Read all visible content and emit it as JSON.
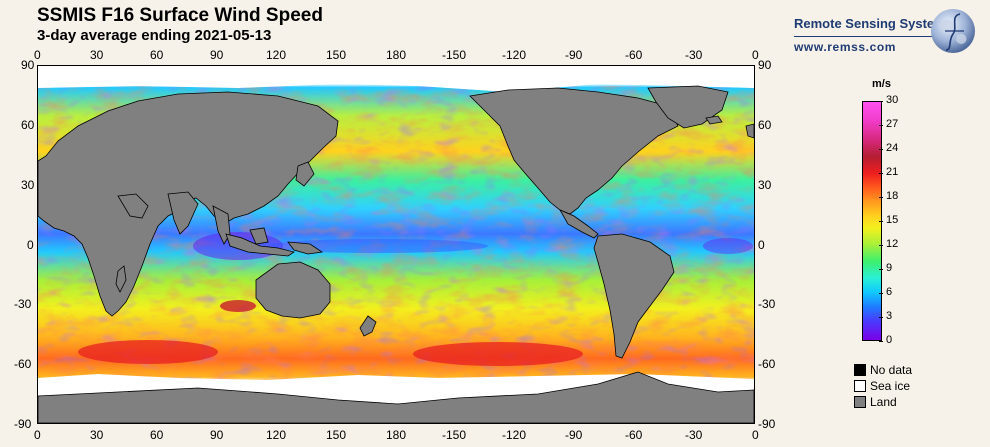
{
  "header": {
    "title": "SSMIS F16 Surface Wind Speed",
    "subtitle": "3-day average ending 2021-05-13"
  },
  "brand": {
    "name": "Remote Sensing Systems",
    "url": "www.remss.com"
  },
  "map": {
    "lon_ticks": [
      "0",
      "30",
      "60",
      "90",
      "120",
      "150",
      "180",
      "-150",
      "-120",
      "-90",
      "-60",
      "-30",
      "0"
    ],
    "lat_ticks": [
      "90",
      "60",
      "30",
      "0",
      "-30",
      "-60",
      "-90"
    ],
    "colors": {
      "land": "#808080",
      "sea_ice": "#ffffff",
      "no_data": "#000000",
      "coast": "#000000"
    }
  },
  "legend": {
    "units": "m/s",
    "ticks": [
      "30",
      "27",
      "24",
      "21",
      "18",
      "15",
      "12",
      "9",
      "6",
      "3",
      "0"
    ],
    "range": [
      0,
      30
    ],
    "key": [
      {
        "label": "No data",
        "color": "#000000"
      },
      {
        "label": "Sea ice",
        "color": "#ffffff"
      },
      {
        "label": "Land",
        "color": "#808080"
      }
    ]
  }
}
